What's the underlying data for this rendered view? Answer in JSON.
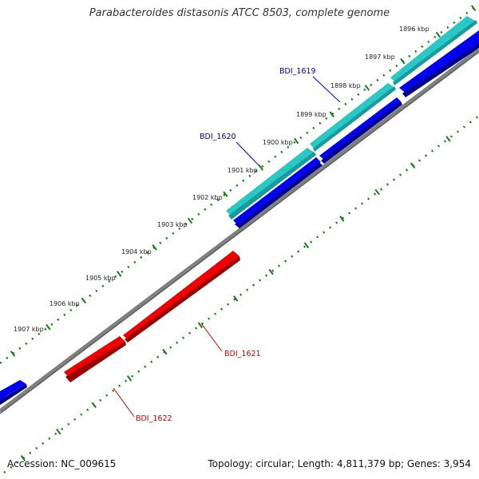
{
  "title": "Parabacteroides distasonis ATCC 8503, complete genome",
  "footer": {
    "accession": "Accession: NC_009615",
    "summary": "Topology: circular; Length: 4,811,379 bp; Genes: 3,954"
  },
  "colors": {
    "backbone": "#808080",
    "tick": "#1a7a1a",
    "cds_forward": "#0000ee",
    "cds_feature": "#2bc6c6",
    "cds_reverse": "#ee0000",
    "label_forward": "#00008b",
    "label_reverse": "#cc0000"
  },
  "ticks": [
    {
      "label": "1896 kbp"
    },
    {
      "label": "1897 kbp"
    },
    {
      "label": "1898 kbp"
    },
    {
      "label": "1899 kbp"
    },
    {
      "label": "1900 kbp"
    },
    {
      "label": "1901 kbp"
    },
    {
      "label": "1902 kbp"
    },
    {
      "label": "1903 kbp"
    },
    {
      "label": "1904 kbp"
    },
    {
      "label": "1905 kbp"
    },
    {
      "label": "1906 kbp"
    },
    {
      "label": "1907 kbp"
    }
  ],
  "genes": [
    {
      "name": "BDI_1619",
      "strand": "forward"
    },
    {
      "name": "BDI_1620",
      "strand": "forward"
    },
    {
      "name": "BDI_1621",
      "strand": "reverse"
    },
    {
      "name": "BDI_1622",
      "strand": "reverse"
    }
  ]
}
